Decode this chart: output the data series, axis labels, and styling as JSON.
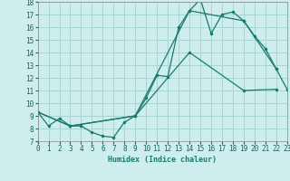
{
  "title": "",
  "xlabel": "Humidex (Indice chaleur)",
  "xlim": [
    0,
    23
  ],
  "ylim": [
    7,
    18
  ],
  "xticks": [
    0,
    1,
    2,
    3,
    4,
    5,
    6,
    7,
    8,
    9,
    10,
    11,
    12,
    13,
    14,
    15,
    16,
    17,
    18,
    19,
    20,
    21,
    22,
    23
  ],
  "yticks": [
    7,
    8,
    9,
    10,
    11,
    12,
    13,
    14,
    15,
    16,
    17,
    18
  ],
  "bg_color": "#cdeeed",
  "grid_color": "#a8d5d0",
  "line_color": "#1a7a6e",
  "lines": [
    {
      "x": [
        0,
        1,
        2,
        3,
        4,
        5,
        6,
        7,
        8,
        9,
        10,
        11,
        12,
        13,
        14,
        15,
        16,
        17,
        18,
        19,
        20,
        21,
        22,
        23
      ],
      "y": [
        9.3,
        8.2,
        8.8,
        8.2,
        8.2,
        7.7,
        7.4,
        7.3,
        8.5,
        9.0,
        10.4,
        12.2,
        12.1,
        16.0,
        17.3,
        18.2,
        15.5,
        17.0,
        17.2,
        16.5,
        15.3,
        14.3,
        12.7,
        11.1
      ]
    },
    {
      "x": [
        0,
        3,
        9,
        14,
        19,
        22
      ],
      "y": [
        9.3,
        8.2,
        9.0,
        17.3,
        16.5,
        12.7
      ]
    },
    {
      "x": [
        0,
        3,
        9,
        14,
        19,
        22
      ],
      "y": [
        9.3,
        8.2,
        9.0,
        14.0,
        11.0,
        11.1
      ]
    }
  ]
}
